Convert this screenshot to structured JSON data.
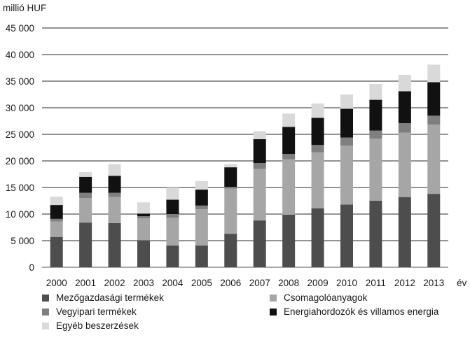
{
  "chart_data": {
    "type": "bar",
    "stacked": true,
    "ylabel": "millió HUF",
    "xlabel": "év",
    "ylim": [
      0,
      45000
    ],
    "yticks": [
      0,
      5000,
      10000,
      15000,
      20000,
      25000,
      30000,
      35000,
      40000,
      45000
    ],
    "ytick_labels": [
      "0",
      "5 000",
      "10 000",
      "15 000",
      "20 000",
      "25 000",
      "30 000",
      "35 000",
      "40 000",
      "45 000"
    ],
    "grid": "horizontal",
    "legend_position": "bottom",
    "categories": [
      "2000",
      "2001",
      "2002",
      "2003",
      "2004",
      "2005",
      "2006",
      "2007",
      "2008",
      "2009",
      "2010",
      "2011",
      "2012",
      "2013"
    ],
    "series": [
      {
        "name": "Mezőgazdasági termékek",
        "color": "#4d4d4d",
        "values": [
          5700,
          8400,
          8300,
          5100,
          4100,
          4100,
          6300,
          8800,
          9900,
          11100,
          11800,
          12500,
          13200,
          13800
        ]
      },
      {
        "name": "Csomagolóanyagok",
        "color": "#a6a6a6",
        "values": [
          2900,
          4600,
          4900,
          4100,
          5200,
          6800,
          8500,
          9700,
          10400,
          10500,
          11100,
          11700,
          12100,
          13000
        ]
      },
      {
        "name": "Vegyipari termékek",
        "color": "#7f7f7f",
        "values": [
          500,
          1000,
          800,
          400,
          700,
          700,
          300,
          1100,
          1000,
          1400,
          1500,
          1500,
          1800,
          1700
        ]
      },
      {
        "name": "Energiahordozók és villamos energia",
        "color": "#111111",
        "values": [
          2600,
          3000,
          3200,
          500,
          2700,
          3000,
          3700,
          4500,
          5100,
          5100,
          5400,
          5800,
          6000,
          6300
        ]
      },
      {
        "name": "Egyéb beszerzések",
        "color": "#d9d9d9",
        "values": [
          1600,
          900,
          2200,
          2100,
          2300,
          1600,
          600,
          1500,
          2500,
          2700,
          2700,
          3000,
          3100,
          3300
        ]
      }
    ]
  }
}
